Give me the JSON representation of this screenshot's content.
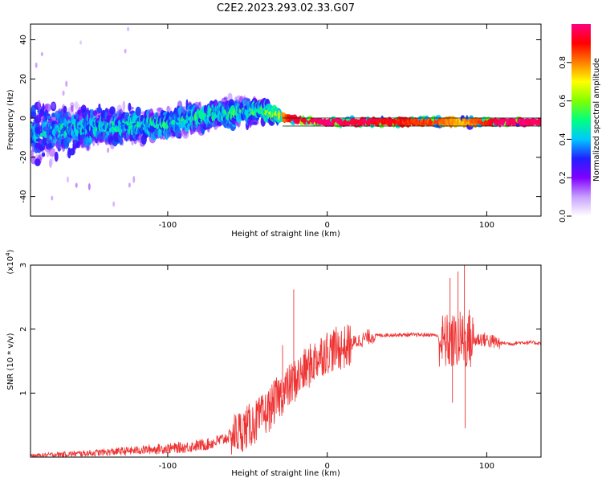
{
  "chart_data": [
    {
      "type": "heatmap",
      "title": "C2E2.2023.293.02.33.G07",
      "xlabel": "Height of straight line (km)",
      "ylabel": "Frequency (Hz)",
      "xlim": [
        -186,
        134
      ],
      "ylim": [
        -50,
        48
      ],
      "xticks": [
        -100,
        0,
        100
      ],
      "yticks": [
        -40,
        -20,
        0,
        20,
        40
      ],
      "colorbar": {
        "label": "Normalized spectral amplitude",
        "range": [
          0,
          1
        ],
        "ticks": [
          0.0,
          0.2,
          0.4,
          0.6,
          0.8
        ],
        "colors": [
          "#ffffff",
          "#c8a0ff",
          "#8000ff",
          "#2020ff",
          "#00c8ff",
          "#00ff80",
          "#80ff00",
          "#ffff00",
          "#ff8000",
          "#ff0000",
          "#ff0080"
        ]
      },
      "trend": [
        {
          "x": -186,
          "freq": -8,
          "spread": 22,
          "amp": 0.35
        },
        {
          "x": -150,
          "freq": -5,
          "spread": 14,
          "amp": 0.4
        },
        {
          "x": -100,
          "freq": -3,
          "spread": 10,
          "amp": 0.45
        },
        {
          "x": -70,
          "freq": 2,
          "spread": 10,
          "amp": 0.45
        },
        {
          "x": -40,
          "freq": 4,
          "spread": 8,
          "amp": 0.5
        },
        {
          "x": -30,
          "freq": 1,
          "spread": 3,
          "amp": 0.75
        },
        {
          "x": -20,
          "freq": -1,
          "spread": 2,
          "amp": 0.9
        },
        {
          "x": 0,
          "freq": -2,
          "spread": 2,
          "amp": 0.95
        },
        {
          "x": 70,
          "freq": -2,
          "spread": 3,
          "amp": 0.8
        },
        {
          "x": 85,
          "freq": -2,
          "spread": 3,
          "amp": 0.7
        },
        {
          "x": 110,
          "freq": -2,
          "spread": 2,
          "amp": 0.95
        },
        {
          "x": 134,
          "freq": -2,
          "spread": 2,
          "amp": 0.95
        }
      ]
    },
    {
      "type": "line",
      "ylabel": "SNR (10 * v/v)",
      "yscale_label": "(x10",
      "yscale_exp": "4",
      "yscale_close": ")",
      "xlabel": "Height of straight line (km)",
      "xlim": [
        -186,
        134
      ],
      "ylim": [
        0,
        3
      ],
      "xticks": [
        -100,
        0,
        100
      ],
      "yticks": [
        1,
        2,
        3
      ],
      "color": "#ee3333",
      "series": [
        {
          "name": "SNR",
          "x": [
            -186,
            -170,
            -150,
            -130,
            -110,
            -90,
            -75,
            -65,
            -55,
            -48,
            -42,
            -36,
            -32,
            -28,
            -24,
            -20,
            -16,
            -12,
            -8,
            -4,
            0,
            4,
            8,
            12,
            16,
            20,
            25,
            30,
            40,
            50,
            60,
            68,
            72,
            76,
            80,
            84,
            88,
            92,
            96,
            100,
            104,
            108,
            112,
            116,
            120,
            126,
            134
          ],
          "y": [
            0.02,
            0.04,
            0.06,
            0.09,
            0.12,
            0.15,
            0.2,
            0.28,
            0.4,
            0.5,
            0.6,
            0.75,
            0.9,
            1.0,
            1.1,
            1.2,
            1.3,
            1.4,
            1.5,
            1.6,
            1.65,
            1.68,
            1.7,
            1.72,
            1.78,
            1.82,
            1.87,
            1.9,
            1.91,
            1.91,
            1.91,
            1.91,
            1.8,
            1.8,
            1.8,
            1.85,
            1.8,
            1.82,
            1.85,
            1.83,
            1.8,
            1.78,
            1.78,
            1.77,
            1.79,
            1.79,
            1.78
          ]
        }
      ],
      "spikes": [
        {
          "x": -28,
          "y": 1.75
        },
        {
          "x": -21,
          "y": 2.62
        },
        {
          "x": -14,
          "y": 1.6
        },
        {
          "x": 77,
          "y": 2.8
        },
        {
          "x": 82,
          "y": 2.9
        },
        {
          "x": 86,
          "y": 3.0
        },
        {
          "x": 86.5,
          "y": 0.45
        },
        {
          "x": 78.5,
          "y": 0.85
        },
        {
          "x": 89,
          "y": 2.3
        }
      ]
    }
  ]
}
